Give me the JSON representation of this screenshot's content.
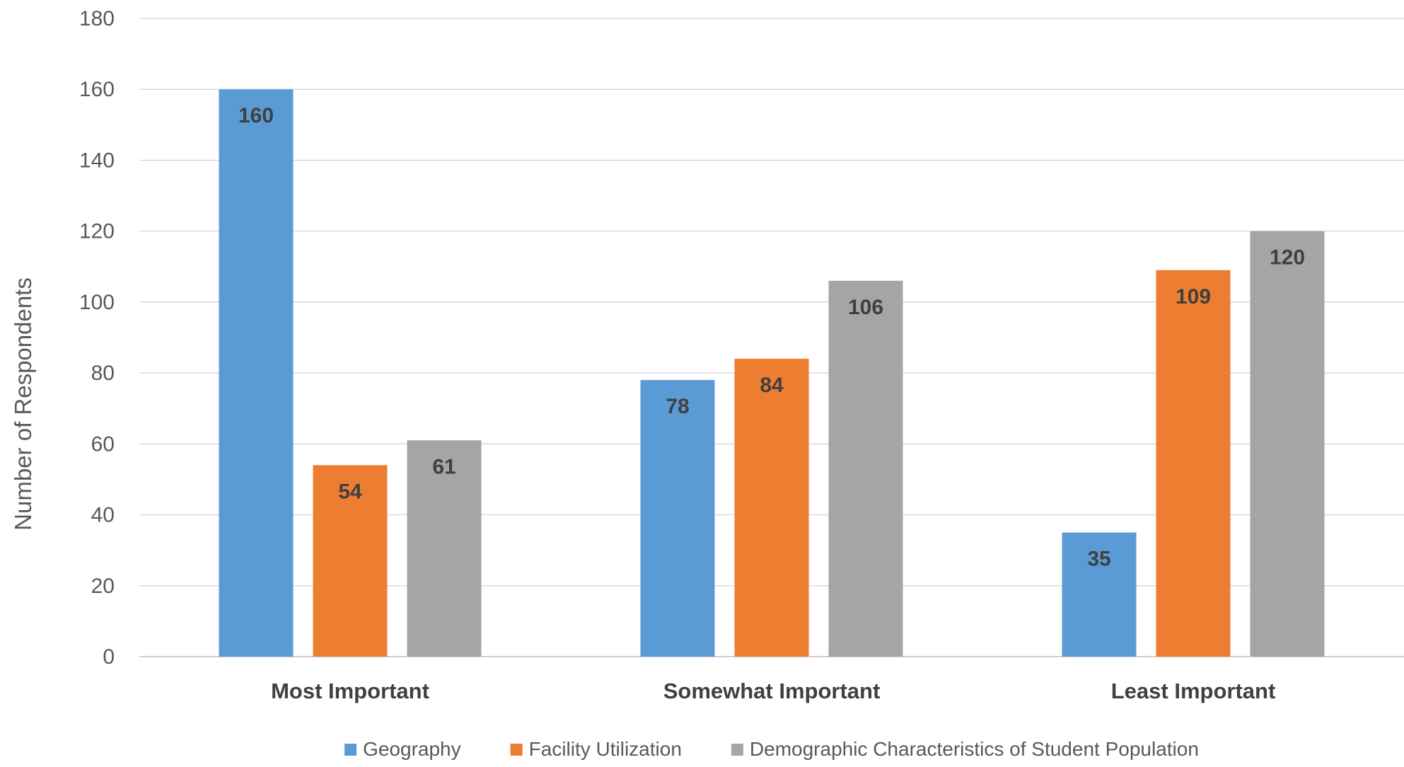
{
  "chart_data": {
    "type": "bar",
    "title": "",
    "xlabel": "",
    "ylabel": "Number of Respondents",
    "categories": [
      "Most Important",
      "Somewhat Important",
      "Least Important"
    ],
    "series": [
      {
        "name": "Geography",
        "color": "#5b9bd5",
        "values": [
          160,
          78,
          35
        ]
      },
      {
        "name": "Facility Utilization",
        "color": "#ed7d31",
        "values": [
          54,
          84,
          109
        ]
      },
      {
        "name": "Demographic Characteristics of Student Population",
        "color": "#a5a5a5",
        "values": [
          61,
          106,
          120
        ]
      }
    ],
    "ylim": [
      0,
      180
    ],
    "yticks": [
      0,
      20,
      40,
      60,
      80,
      100,
      120,
      140,
      160,
      180
    ],
    "grid": true,
    "legend_position": "bottom",
    "data_labels": true
  }
}
